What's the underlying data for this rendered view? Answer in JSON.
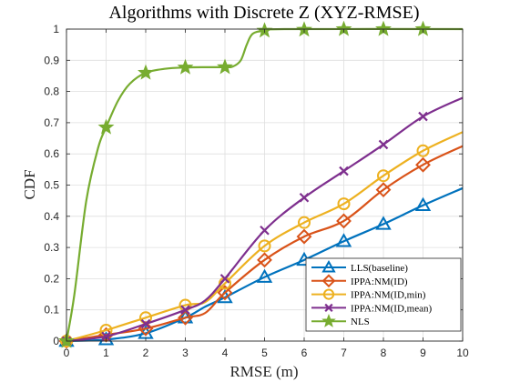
{
  "chart_data": {
    "type": "line",
    "title": "Algorithms with Discrete Z (XYZ-RMSE)",
    "xlabel": "RMSE (m)",
    "ylabel": "CDF",
    "xlim": [
      0,
      10
    ],
    "ylim": [
      0,
      1
    ],
    "xticks": [
      "0",
      "1",
      "2",
      "3",
      "4",
      "5",
      "6",
      "7",
      "8",
      "9",
      "10"
    ],
    "yticks": [
      "0",
      "0.1",
      "0.2",
      "0.3",
      "0.4",
      "0.5",
      "0.6",
      "0.7",
      "0.8",
      "0.9",
      "1"
    ],
    "grid": true,
    "legend_position": "bottom-right",
    "series": [
      {
        "name": "LLS(baseline)",
        "color": "#0072BD",
        "marker": "triangle",
        "curve": [
          [
            0,
            0
          ],
          [
            1,
            0.005
          ],
          [
            2,
            0.025
          ],
          [
            3,
            0.075
          ],
          [
            3.5,
            0.11
          ],
          [
            4,
            0.14
          ],
          [
            5,
            0.205
          ],
          [
            6,
            0.26
          ],
          [
            7,
            0.32
          ],
          [
            8,
            0.375
          ],
          [
            9,
            0.435
          ],
          [
            10,
            0.49
          ]
        ],
        "marker_points": [
          [
            0,
            0
          ],
          [
            1,
            0.005
          ],
          [
            2,
            0.025
          ],
          [
            3,
            0.075
          ],
          [
            4,
            0.14
          ],
          [
            5,
            0.205
          ],
          [
            6,
            0.26
          ],
          [
            7,
            0.32
          ],
          [
            8,
            0.375
          ],
          [
            9,
            0.435
          ]
        ]
      },
      {
        "name": "IPPA:NM(ID)",
        "color": "#D95319",
        "marker": "diamond",
        "curve": [
          [
            0,
            0
          ],
          [
            1,
            0.02
          ],
          [
            2,
            0.04
          ],
          [
            3,
            0.075
          ],
          [
            3.5,
            0.09
          ],
          [
            4,
            0.155
          ],
          [
            5,
            0.26
          ],
          [
            6,
            0.335
          ],
          [
            7,
            0.385
          ],
          [
            8,
            0.485
          ],
          [
            9,
            0.565
          ],
          [
            10,
            0.625
          ]
        ],
        "marker_points": [
          [
            0,
            0
          ],
          [
            1,
            0.02
          ],
          [
            2,
            0.04
          ],
          [
            3,
            0.075
          ],
          [
            4,
            0.155
          ],
          [
            5,
            0.26
          ],
          [
            6,
            0.335
          ],
          [
            7,
            0.385
          ],
          [
            8,
            0.485
          ],
          [
            9,
            0.565
          ]
        ]
      },
      {
        "name": "IPPA:NM(ID,min)",
        "color": "#EDB120",
        "marker": "circle",
        "curve": [
          [
            0,
            0
          ],
          [
            1,
            0.035
          ],
          [
            2,
            0.075
          ],
          [
            3,
            0.115
          ],
          [
            3.5,
            0.125
          ],
          [
            4,
            0.185
          ],
          [
            5,
            0.305
          ],
          [
            6,
            0.38
          ],
          [
            7,
            0.44
          ],
          [
            8,
            0.53
          ],
          [
            9,
            0.61
          ],
          [
            10,
            0.67
          ]
        ],
        "marker_points": [
          [
            0,
            0
          ],
          [
            1,
            0.035
          ],
          [
            2,
            0.075
          ],
          [
            3,
            0.115
          ],
          [
            4,
            0.185
          ],
          [
            5,
            0.305
          ],
          [
            6,
            0.38
          ],
          [
            7,
            0.44
          ],
          [
            8,
            0.53
          ],
          [
            9,
            0.61
          ]
        ]
      },
      {
        "name": "IPPA:NM(ID,mean)",
        "color": "#7E2F8E",
        "marker": "x",
        "curve": [
          [
            0,
            0
          ],
          [
            1,
            0.015
          ],
          [
            2,
            0.055
          ],
          [
            3,
            0.1
          ],
          [
            3.5,
            0.13
          ],
          [
            4,
            0.2
          ],
          [
            5,
            0.355
          ],
          [
            6,
            0.46
          ],
          [
            7,
            0.545
          ],
          [
            8,
            0.63
          ],
          [
            9,
            0.72
          ],
          [
            10,
            0.78
          ]
        ],
        "marker_points": [
          [
            0,
            0
          ],
          [
            1,
            0.015
          ],
          [
            2,
            0.055
          ],
          [
            3,
            0.1
          ],
          [
            4,
            0.2
          ],
          [
            5,
            0.355
          ],
          [
            6,
            0.46
          ],
          [
            7,
            0.545
          ],
          [
            8,
            0.63
          ],
          [
            9,
            0.72
          ]
        ]
      },
      {
        "name": "NLS",
        "color": "#77AC30",
        "marker": "star",
        "curve": [
          [
            0,
            0
          ],
          [
            0.2,
            0.15
          ],
          [
            0.5,
            0.45
          ],
          [
            0.8,
            0.62
          ],
          [
            1,
            0.685
          ],
          [
            1.3,
            0.77
          ],
          [
            1.6,
            0.825
          ],
          [
            2,
            0.86
          ],
          [
            2.5,
            0.873
          ],
          [
            3,
            0.877
          ],
          [
            3.5,
            0.878
          ],
          [
            4,
            0.878
          ],
          [
            4.2,
            0.88
          ],
          [
            4.4,
            0.9
          ],
          [
            4.55,
            0.95
          ],
          [
            4.7,
            0.985
          ],
          [
            5,
            0.995
          ],
          [
            5.5,
            1.0
          ],
          [
            10,
            1.0
          ]
        ],
        "marker_points": [
          [
            0,
            0
          ],
          [
            1,
            0.685
          ],
          [
            2,
            0.86
          ],
          [
            3,
            0.877
          ],
          [
            4,
            0.878
          ],
          [
            5,
            0.995
          ],
          [
            6,
            0.998
          ],
          [
            7,
            1.0
          ],
          [
            8,
            1.0
          ],
          [
            9,
            1.0
          ]
        ]
      }
    ]
  }
}
